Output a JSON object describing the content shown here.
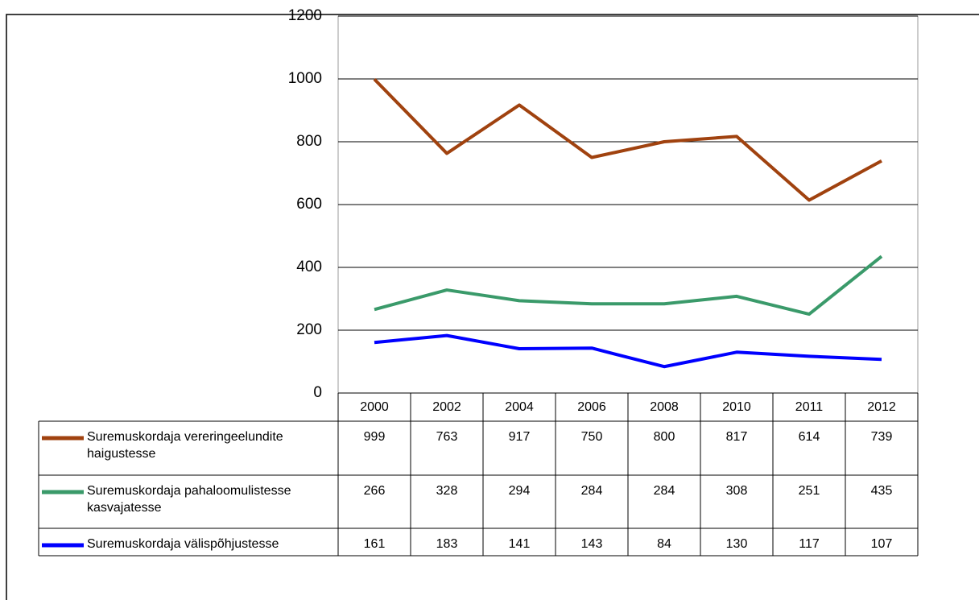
{
  "chart_data": {
    "type": "line",
    "categories": [
      "2000",
      "2002",
      "2004",
      "2006",
      "2008",
      "2010",
      "2011",
      "2012"
    ],
    "series": [
      {
        "name": "Suremuskordaja vereringeelundite haigustesse",
        "color": "#a0420f",
        "values": [
          999,
          763,
          917,
          750,
          800,
          817,
          614,
          739
        ]
      },
      {
        "name": "Suremuskordaja pahaloomulistesse kasvajatesse",
        "color": "#3a9a6a",
        "values": [
          266,
          328,
          294,
          284,
          284,
          308,
          251,
          435
        ]
      },
      {
        "name": "Suremuskordaja välispõhjustesse",
        "color": "#0000ff",
        "values": [
          161,
          183,
          141,
          143,
          84,
          130,
          117,
          107
        ]
      }
    ],
    "ylim": [
      0,
      1200
    ],
    "yticks": [
      0,
      200,
      400,
      600,
      800,
      1000,
      1200
    ],
    "grid": true
  }
}
